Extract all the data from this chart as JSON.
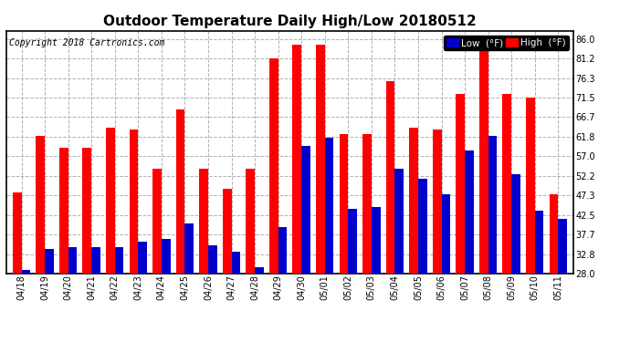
{
  "title": "Outdoor Temperature Daily High/Low 20180512",
  "copyright": "Copyright 2018 Cartronics.com",
  "legend_low": "Low  (°F)",
  "legend_high": "High  (°F)",
  "dates": [
    "04/18",
    "04/19",
    "04/20",
    "04/21",
    "04/22",
    "04/23",
    "04/24",
    "04/25",
    "04/26",
    "04/27",
    "04/28",
    "04/29",
    "04/30",
    "05/01",
    "05/02",
    "05/03",
    "05/04",
    "05/05",
    "05/06",
    "05/07",
    "05/08",
    "05/09",
    "05/10",
    "05/11"
  ],
  "highs": [
    48.0,
    62.0,
    59.0,
    59.0,
    64.0,
    63.5,
    54.0,
    68.5,
    54.0,
    49.0,
    54.0,
    81.2,
    84.5,
    84.5,
    62.5,
    62.5,
    75.5,
    64.0,
    63.5,
    72.5,
    86.0,
    72.5,
    71.5,
    47.5
  ],
  "lows": [
    29.0,
    34.0,
    34.5,
    34.5,
    34.5,
    36.0,
    36.5,
    40.5,
    35.0,
    33.5,
    29.5,
    39.5,
    59.5,
    61.5,
    44.0,
    44.5,
    54.0,
    51.5,
    47.5,
    58.5,
    62.0,
    52.5,
    43.5,
    41.5
  ],
  "ylim": [
    28.0,
    88.0
  ],
  "yticks": [
    28.0,
    32.8,
    37.7,
    42.5,
    47.3,
    52.2,
    57.0,
    61.8,
    66.7,
    71.5,
    76.3,
    81.2,
    86.0
  ],
  "bar_width": 0.38,
  "high_color": "#ff0000",
  "low_color": "#0000cc",
  "bg_color": "#ffffff",
  "grid_color": "#b0b0b0",
  "title_fontsize": 11,
  "tick_fontsize": 7,
  "copyright_fontsize": 7
}
